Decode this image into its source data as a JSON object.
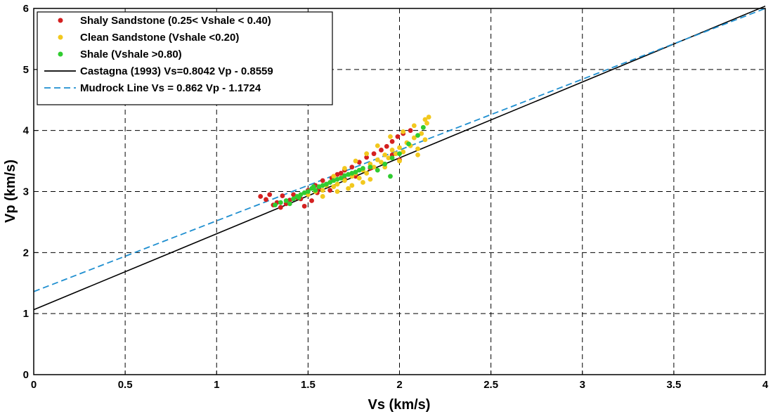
{
  "chart_data": {
    "type": "scatter",
    "xlabel": "Vs (km/s)",
    "ylabel": "Vp (km/s)",
    "xlim": [
      0,
      4
    ],
    "ylim": [
      0,
      6
    ],
    "x_ticks": [
      "0",
      "0.5",
      "1",
      "1.5",
      "2",
      "2.5",
      "3",
      "3.5",
      "4"
    ],
    "y_ticks": [
      "0",
      "1",
      "2",
      "3",
      "4",
      "5",
      "6"
    ],
    "grid": true,
    "grid_style": "dashed",
    "legend_position": "top-left",
    "series": [
      {
        "name": "Shaly Sandstone (0.25< Vshale < 0.40)",
        "kind": "scatter",
        "color": "#d42020",
        "points": [
          [
            1.24,
            2.92
          ],
          [
            1.27,
            2.87
          ],
          [
            1.29,
            2.95
          ],
          [
            1.31,
            2.78
          ],
          [
            1.33,
            2.82
          ],
          [
            1.35,
            2.74
          ],
          [
            1.36,
            2.93
          ],
          [
            1.38,
            2.8
          ],
          [
            1.4,
            2.86
          ],
          [
            1.42,
            2.95
          ],
          [
            1.44,
            2.9
          ],
          [
            1.46,
            2.88
          ],
          [
            1.48,
            2.76
          ],
          [
            1.5,
            3.02
          ],
          [
            1.52,
            2.85
          ],
          [
            1.54,
            3.1
          ],
          [
            1.56,
            3.05
          ],
          [
            1.58,
            3.18
          ],
          [
            1.6,
            3.12
          ],
          [
            1.63,
            3.22
          ],
          [
            1.66,
            3.28
          ],
          [
            1.7,
            3.35
          ],
          [
            1.74,
            3.4
          ],
          [
            1.78,
            3.48
          ],
          [
            1.82,
            3.56
          ],
          [
            1.86,
            3.62
          ],
          [
            1.9,
            3.68
          ],
          [
            1.93,
            3.74
          ],
          [
            1.96,
            3.82
          ],
          [
            1.99,
            3.9
          ],
          [
            2.02,
            3.95
          ],
          [
            2.06,
            4.0
          ],
          [
            2.0,
            3.52
          ],
          [
            1.96,
            3.6
          ],
          [
            1.7,
            3.2
          ],
          [
            1.62,
            3.02
          ],
          [
            1.68,
            3.3
          ],
          [
            1.76,
            3.25
          ],
          [
            1.84,
            3.38
          ],
          [
            1.55,
            2.98
          ]
        ]
      },
      {
        "name": "Clean Sandstone (Vshale <0.20)",
        "kind": "scatter",
        "color": "#f2c81e",
        "points": [
          [
            1.5,
            2.95
          ],
          [
            1.54,
            3.0
          ],
          [
            1.58,
            3.02
          ],
          [
            1.6,
            3.1
          ],
          [
            1.62,
            3.15
          ],
          [
            1.64,
            3.08
          ],
          [
            1.66,
            3.12
          ],
          [
            1.68,
            3.22
          ],
          [
            1.7,
            3.18
          ],
          [
            1.72,
            3.28
          ],
          [
            1.74,
            3.25
          ],
          [
            1.76,
            3.3
          ],
          [
            1.78,
            3.22
          ],
          [
            1.8,
            3.35
          ],
          [
            1.82,
            3.3
          ],
          [
            1.84,
            3.45
          ],
          [
            1.86,
            3.4
          ],
          [
            1.88,
            3.52
          ],
          [
            1.9,
            3.48
          ],
          [
            1.92,
            3.6
          ],
          [
            1.94,
            3.55
          ],
          [
            1.96,
            3.68
          ],
          [
            1.98,
            3.62
          ],
          [
            2.0,
            3.72
          ],
          [
            2.02,
            3.65
          ],
          [
            2.04,
            3.8
          ],
          [
            2.06,
            3.75
          ],
          [
            2.08,
            3.88
          ],
          [
            2.1,
            3.7
          ],
          [
            2.12,
            3.95
          ],
          [
            2.13,
            4.05
          ],
          [
            2.14,
            3.85
          ],
          [
            2.15,
            4.12
          ],
          [
            2.16,
            4.22
          ],
          [
            2.14,
            4.18
          ],
          [
            2.08,
            4.08
          ],
          [
            2.02,
            3.98
          ],
          [
            1.95,
            3.9
          ],
          [
            1.88,
            3.75
          ],
          [
            1.82,
            3.62
          ],
          [
            1.76,
            3.5
          ],
          [
            1.7,
            3.38
          ],
          [
            1.64,
            3.25
          ],
          [
            1.58,
            2.92
          ],
          [
            1.66,
            3.0
          ],
          [
            1.74,
            3.1
          ],
          [
            1.84,
            3.2
          ],
          [
            1.92,
            3.4
          ],
          [
            2.0,
            3.5
          ],
          [
            2.1,
            3.6
          ],
          [
            1.72,
            3.05
          ],
          [
            1.8,
            3.15
          ]
        ]
      },
      {
        "name": "Shale (Vshale >0.80)",
        "kind": "scatter",
        "color": "#30cc30",
        "points": [
          [
            1.32,
            2.78
          ],
          [
            1.35,
            2.82
          ],
          [
            1.38,
            2.85
          ],
          [
            1.4,
            2.8
          ],
          [
            1.42,
            2.88
          ],
          [
            1.44,
            2.92
          ],
          [
            1.46,
            2.95
          ],
          [
            1.48,
            2.98
          ],
          [
            1.5,
            3.0
          ],
          [
            1.52,
            3.05
          ],
          [
            1.54,
            3.02
          ],
          [
            1.56,
            3.08
          ],
          [
            1.58,
            3.1
          ],
          [
            1.6,
            3.12
          ],
          [
            1.62,
            3.15
          ],
          [
            1.64,
            3.18
          ],
          [
            1.66,
            3.2
          ],
          [
            1.68,
            3.22
          ],
          [
            1.7,
            3.26
          ],
          [
            1.72,
            3.28
          ],
          [
            1.74,
            3.3
          ],
          [
            1.76,
            3.32
          ],
          [
            1.78,
            3.35
          ],
          [
            1.8,
            3.38
          ],
          [
            1.84,
            3.4
          ],
          [
            1.88,
            3.35
          ],
          [
            1.92,
            3.45
          ],
          [
            1.96,
            3.55
          ],
          [
            2.0,
            3.62
          ],
          [
            2.05,
            3.78
          ],
          [
            2.1,
            3.92
          ],
          [
            2.13,
            4.05
          ],
          [
            1.95,
            3.25
          ],
          [
            1.45,
            2.9
          ],
          [
            1.53,
            3.08
          ]
        ]
      },
      {
        "name": "Castagna (1993) Vs=0.8042 Vp - 0.8559",
        "kind": "line",
        "color": "#000000",
        "dash": "solid",
        "slope": 0.8042,
        "intercept": -0.8559
      },
      {
        "name": "Mudrock Line Vs = 0.862 Vp - 1.1724",
        "kind": "line",
        "color": "#1f8fd0",
        "dash": "dashed",
        "slope": 0.862,
        "intercept": -1.1724
      }
    ]
  }
}
